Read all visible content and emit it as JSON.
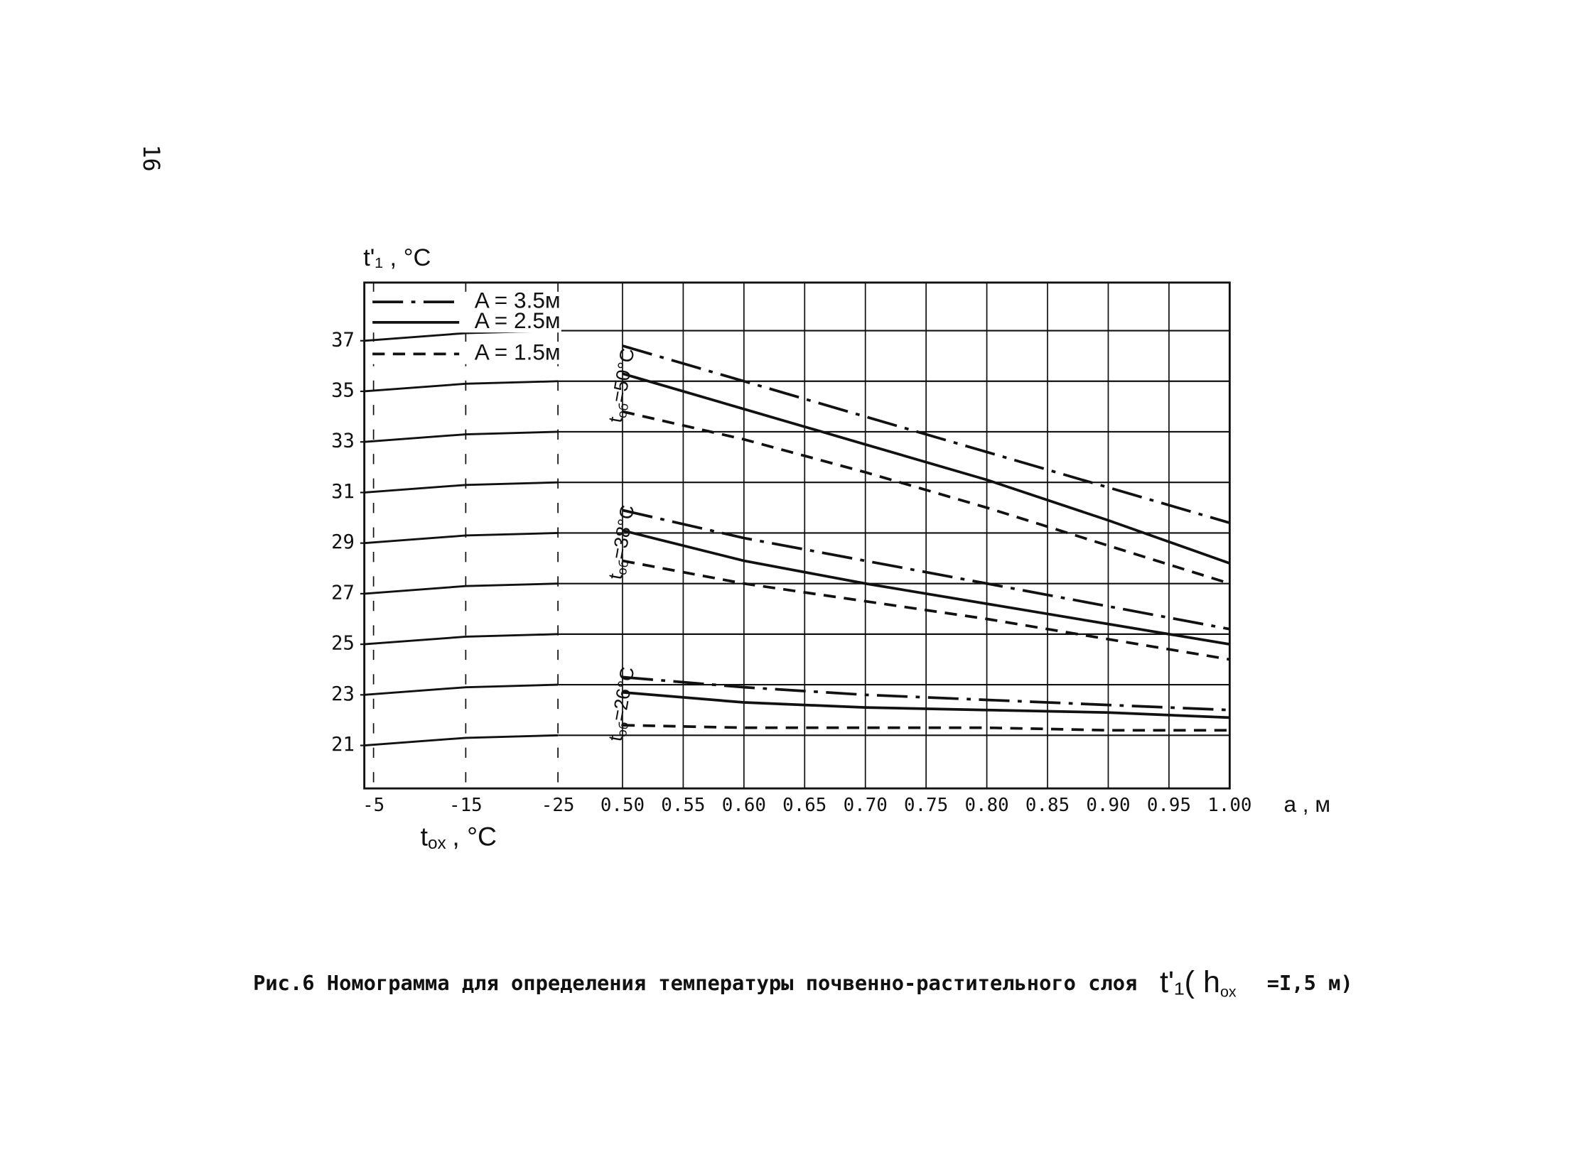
{
  "page_number": "16",
  "caption": {
    "text": "Рис.6  Номограмма для определения температуры почвенно-растительного слоя",
    "formula": "t'₁( h",
    "formula_sub": "ox",
    "formula_end": "=I,5 м)"
  },
  "chart_data": {
    "type": "nomogram",
    "y_label": "t'₁ , °C",
    "x_label": "t",
    "x_label_sub": "ox",
    "x_label_end": ", °C",
    "x2_label": "a , м",
    "ylim": [
      19.3,
      39.3
    ],
    "yticks": [
      21,
      23,
      25,
      27,
      29,
      31,
      33,
      35,
      37
    ],
    "xlim": [
      -4,
      -32
    ],
    "xticks": [
      -5,
      -15,
      -25
    ],
    "x2lim": [
      0.5,
      1.0
    ],
    "x2ticks": [
      {
        "value": 0.5,
        "label": "0.50"
      },
      {
        "value": 0.55,
        "label": "0.55"
      },
      {
        "value": 0.6,
        "label": "0.60"
      },
      {
        "value": 0.65,
        "label": "0.65"
      },
      {
        "value": 0.7,
        "label": "0.70"
      },
      {
        "value": 0.75,
        "label": "0.75"
      },
      {
        "value": 0.8,
        "label": "0.80"
      },
      {
        "value": 0.85,
        "label": "0.85"
      },
      {
        "value": 0.9,
        "label": "0.90"
      },
      {
        "value": 0.95,
        "label": "0.95"
      },
      {
        "value": 1.0,
        "label": "1.00"
      }
    ],
    "grid": true,
    "left_x": [
      -4,
      -15,
      -25
    ],
    "left_curves": [
      [
        21.0,
        21.3,
        21.4
      ],
      [
        23.0,
        23.3,
        23.4
      ],
      [
        25.0,
        25.3,
        25.4
      ],
      [
        27.0,
        27.3,
        27.4
      ],
      [
        29.0,
        29.3,
        29.4
      ],
      [
        31.0,
        31.3,
        31.4
      ],
      [
        33.0,
        33.3,
        33.4
      ],
      [
        35.0,
        35.3,
        35.4
      ],
      [
        37.0,
        37.3,
        37.4
      ]
    ],
    "legend": [
      {
        "name": "A = 3.5м",
        "dash": "dashdot"
      },
      {
        "name": "A = 2.5м",
        "dash": "solid"
      },
      {
        "name": "A = 1.5м",
        "dash": "dashed"
      }
    ],
    "color": "#111111",
    "group_symbol": "t",
    "group_symbol_sub": "об",
    "right_x": [
      0.5,
      0.6,
      0.7,
      0.8,
      0.9,
      1.0
    ],
    "groups": [
      {
        "label": "=50°C",
        "series": [
          [
            36.8,
            35.4,
            34.0,
            32.6,
            31.2,
            29.8
          ],
          [
            35.7,
            34.3,
            32.9,
            31.5,
            29.9,
            28.2
          ],
          [
            34.2,
            33.1,
            31.8,
            30.4,
            28.9,
            27.4
          ]
        ]
      },
      {
        "label": "=38°C",
        "series": [
          [
            30.3,
            29.2,
            28.3,
            27.4,
            26.5,
            25.6
          ],
          [
            29.5,
            28.3,
            27.4,
            26.6,
            25.8,
            25.0
          ],
          [
            28.3,
            27.4,
            26.7,
            26.0,
            25.2,
            24.4
          ]
        ]
      },
      {
        "label": "=26°C",
        "series": [
          [
            23.7,
            23.3,
            23.0,
            22.8,
            22.6,
            22.4
          ],
          [
            23.1,
            22.7,
            22.5,
            22.4,
            22.3,
            22.1
          ],
          [
            21.8,
            21.7,
            21.7,
            21.7,
            21.6,
            21.6
          ]
        ]
      }
    ]
  }
}
